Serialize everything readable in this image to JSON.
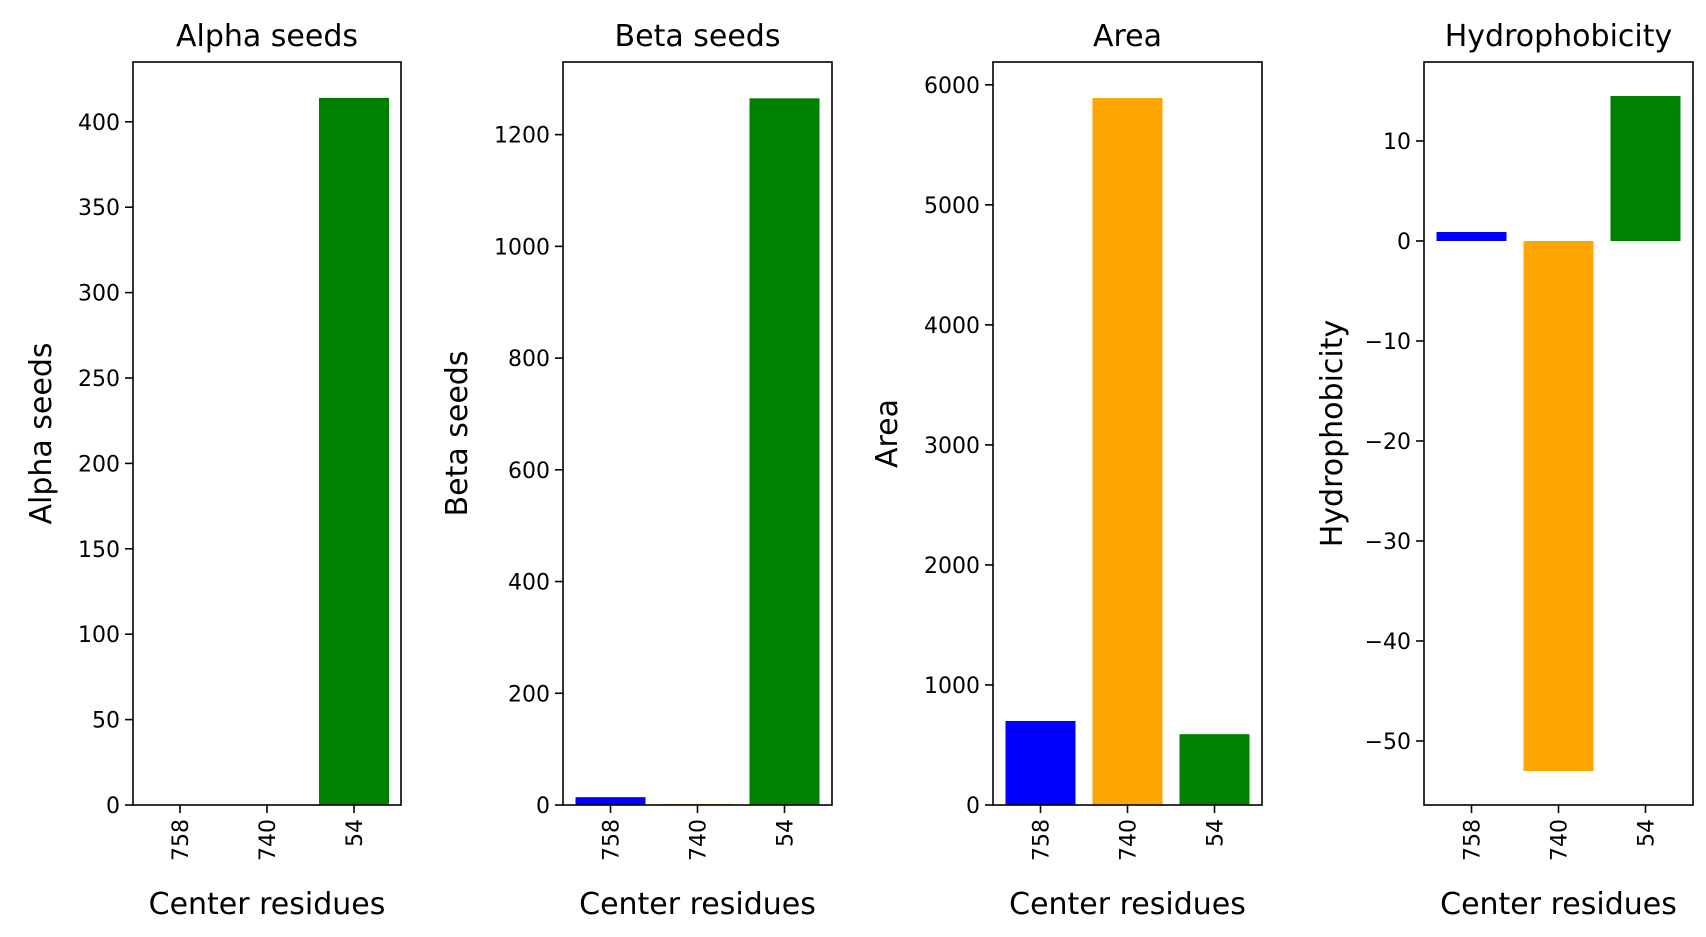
{
  "chart_data": [
    {
      "type": "bar",
      "title": "Alpha seeds",
      "xlabel": "Center residues",
      "ylabel": "Alpha seeds",
      "categories": [
        "758",
        "740",
        "54"
      ],
      "values": [
        0,
        0,
        414
      ],
      "bar_colors": [
        "#0000ff",
        "#ffa500",
        "#008000"
      ],
      "ylim": [
        0,
        435
      ],
      "yticks": [
        0,
        50,
        100,
        150,
        200,
        250,
        300,
        350,
        400
      ],
      "ytick_labels": [
        "0",
        "50",
        "100",
        "150",
        "200",
        "250",
        "300",
        "350",
        "400"
      ],
      "grid": false,
      "legend": "none"
    },
    {
      "type": "bar",
      "title": "Beta seeds",
      "xlabel": "Center residues",
      "ylabel": "Beta seeds",
      "categories": [
        "758",
        "740",
        "54"
      ],
      "values": [
        14,
        2,
        1265
      ],
      "bar_colors": [
        "#0000ff",
        "#ffa500",
        "#008000"
      ],
      "ylim": [
        0,
        1330
      ],
      "yticks": [
        0,
        200,
        400,
        600,
        800,
        1000,
        1200
      ],
      "ytick_labels": [
        "0",
        "200",
        "400",
        "600",
        "800",
        "1000",
        "1200"
      ],
      "grid": false,
      "legend": "none"
    },
    {
      "type": "bar",
      "title": "Area",
      "xlabel": "Center residues",
      "ylabel": "Area",
      "categories": [
        "758",
        "740",
        "54"
      ],
      "values": [
        700,
        5890,
        590
      ],
      "bar_colors": [
        "#0000ff",
        "#ffa500",
        "#008000"
      ],
      "ylim": [
        0,
        6190
      ],
      "yticks": [
        0,
        1000,
        2000,
        3000,
        4000,
        5000,
        6000
      ],
      "ytick_labels": [
        "0",
        "1000",
        "2000",
        "3000",
        "4000",
        "5000",
        "6000"
      ],
      "grid": false,
      "legend": "none"
    },
    {
      "type": "bar",
      "title": "Hydrophobicity",
      "xlabel": "Center residues",
      "ylabel": "Hydrophobicity",
      "categories": [
        "758",
        "740",
        "54"
      ],
      "values": [
        0.9,
        -53.0,
        14.5
      ],
      "bar_colors": [
        "#0000ff",
        "#ffa500",
        "#008000"
      ],
      "ylim": [
        -56.4,
        17.9
      ],
      "yticks": [
        -50,
        -40,
        -30,
        -20,
        -10,
        0,
        10
      ],
      "ytick_labels": [
        "−50",
        "−40",
        "−30",
        "−20",
        "−10",
        "0",
        "10"
      ],
      "grid": false,
      "legend": "none"
    }
  ]
}
